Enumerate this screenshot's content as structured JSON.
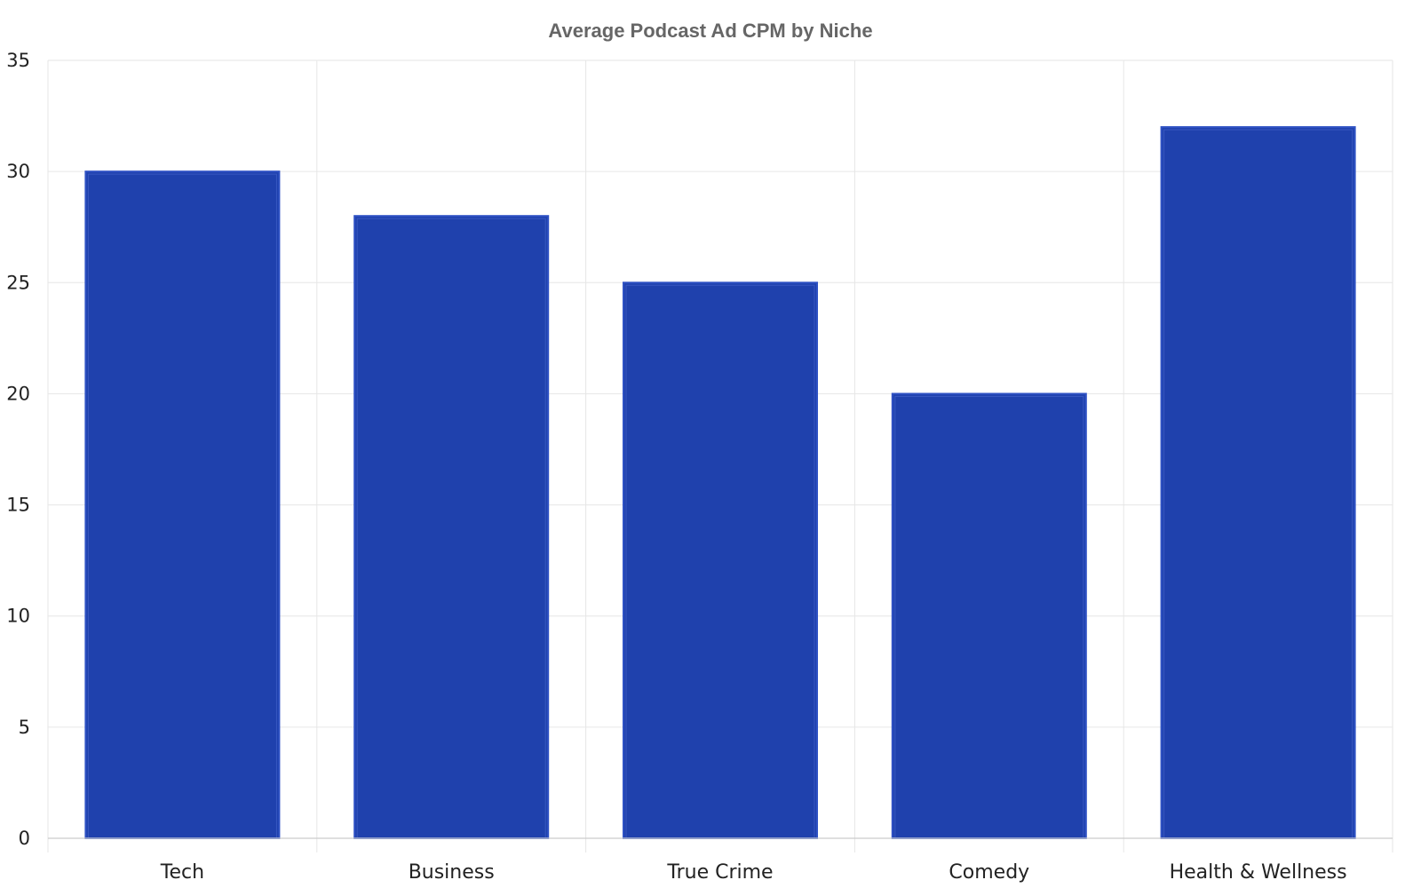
{
  "chart_data": {
    "type": "bar",
    "title": "Average Podcast Ad CPM by Niche",
    "xlabel": "",
    "ylabel": "",
    "categories": [
      "Tech",
      "Business",
      "True Crime",
      "Comedy",
      "Health & Wellness"
    ],
    "series": [
      {
        "values": [
          30,
          28,
          25,
          20,
          32
        ]
      }
    ],
    "ylim": [
      0,
      35
    ],
    "yticks": [
      0,
      5,
      10,
      15,
      20,
      25,
      30,
      35
    ],
    "grid": true,
    "legend": "none",
    "colors": {
      "bar_fill": "#1f41ad",
      "bar_edge": "#2f52c4",
      "bar_inner": "#4a68cf",
      "grid": "#e6e6e6",
      "title": "#666666",
      "text": "#222222"
    }
  }
}
